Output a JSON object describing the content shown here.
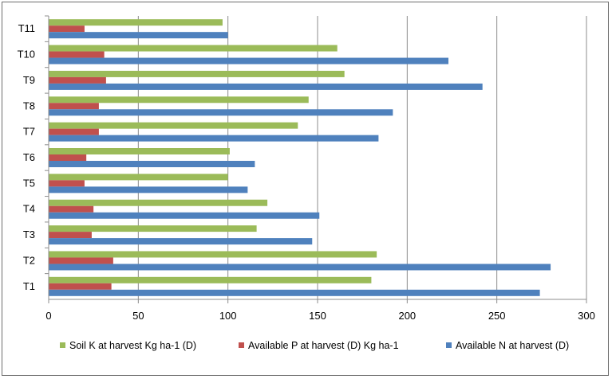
{
  "chart_data": {
    "type": "bar",
    "orientation": "horizontal",
    "categories": [
      "T1",
      "T2",
      "T3",
      "T4",
      "T5",
      "T6",
      "T7",
      "T8",
      "T9",
      "T10",
      "T11"
    ],
    "series": [
      {
        "name": "Soil K at harvest Kg ha-1 (D)",
        "color": "#9bbb59",
        "values": [
          180,
          183,
          116,
          122,
          100,
          101,
          139,
          145,
          165,
          161,
          97
        ]
      },
      {
        "name": "Available P at harvest (D) Kg ha-1",
        "color": "#c0504d",
        "values": [
          35,
          36,
          24,
          25,
          20,
          21,
          28,
          28,
          32,
          31,
          20
        ]
      },
      {
        "name": "Available N at harvest (D)",
        "color": "#4f81bd",
        "values": [
          274,
          280,
          147,
          151,
          111,
          115,
          184,
          192,
          242,
          223,
          100
        ]
      }
    ],
    "xlim": [
      0,
      300
    ],
    "xticks": [
      "0",
      "50",
      "100",
      "150",
      "200",
      "250",
      "300"
    ],
    "grid": true,
    "legend_position": "bottom",
    "title": "",
    "xlabel": "",
    "ylabel": ""
  }
}
